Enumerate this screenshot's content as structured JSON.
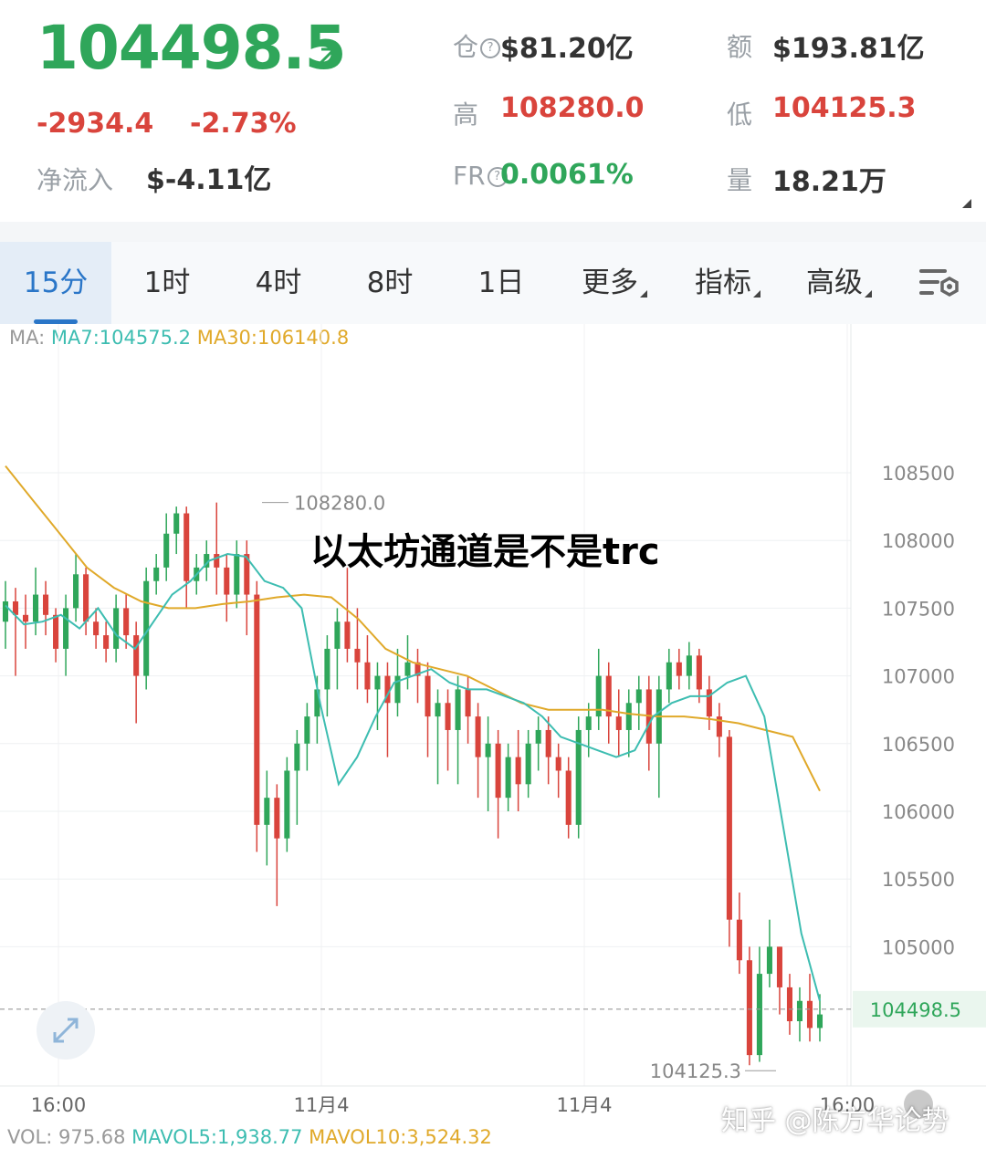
{
  "header": {
    "price": "104498.5",
    "change": "-2934.4",
    "change_pct": "-2.73%",
    "net_inflow_label": "净流入",
    "net_inflow_value": "$-4.11亿",
    "oi_label": "仓",
    "oi_value": "$81.20亿",
    "amount_label": "额",
    "amount_value": "$193.81亿",
    "high_label": "高",
    "high_value": "108280.0",
    "low_label": "低",
    "low_value": "104125.3",
    "fr_label": "FR",
    "fr_value": "0.0061%",
    "volume_label": "量",
    "volume_value": "18.21万",
    "question_glyph": "?"
  },
  "tabs": [
    {
      "label": "15分",
      "active": true
    },
    {
      "label": "1时"
    },
    {
      "label": "4时"
    },
    {
      "label": "8时"
    },
    {
      "label": "1日"
    },
    {
      "label": "更多"
    },
    {
      "label": "指标"
    },
    {
      "label": "高级"
    }
  ],
  "ma_legend": {
    "prefix": "MA:",
    "ma7": "MA7:104575.2",
    "ma30": "MA30:106140.8"
  },
  "overlay_title": "以太坊通道是不是trc",
  "vol_legend": {
    "vol": "VOL: 975.68",
    "mavol5": "MAVOL5:1,938.77",
    "mavol10": "MAVOL10:3,524.32"
  },
  "watermark": "知乎 @陈方华论势",
  "colors": {
    "up": "#2fa65a",
    "down": "#d9443c",
    "ma7": "#3dbdb1",
    "ma30": "#e0a92a",
    "active_tab": "#2a76c8"
  },
  "chart_data": {
    "type": "candlestick",
    "y_ticks": [
      108500,
      108000,
      107500,
      107000,
      106500,
      106000,
      105500,
      105000
    ],
    "x_tick_labels": [
      "16:00",
      "11月4",
      "11月4",
      "16:00"
    ],
    "last_price_label": "104498.5",
    "high_marker": "108280.0",
    "low_marker": "104125.3",
    "ylim": [
      104000,
      109000
    ],
    "ma7_points": [
      107520,
      107380,
      107400,
      107450,
      107350,
      107500,
      107300,
      107200,
      107400,
      107600,
      107700,
      107850,
      107900,
      107880,
      107700,
      107650,
      107500,
      106800,
      106200,
      106400,
      106700,
      106950,
      107000,
      107050,
      106950,
      106900,
      106900,
      106850,
      106800,
      106700,
      106550,
      106500,
      106450,
      106400,
      106450,
      106700,
      106800,
      106850,
      106850,
      106950,
      107000,
      106700,
      105900,
      105100,
      104600
    ],
    "ma30_points": [
      108550,
      108300,
      108050,
      107800,
      107650,
      107550,
      107500,
      107500,
      107530,
      107550,
      107580,
      107600,
      107580,
      107420,
      107200,
      107100,
      107050,
      107000,
      106900,
      106800,
      106750,
      106750,
      106750,
      106720,
      106700,
      106700,
      106680,
      106650,
      106600,
      106550,
      106150
    ],
    "candles": [
      {
        "o": 107400,
        "c": 107550,
        "h": 107700,
        "l": 107200
      },
      {
        "o": 107550,
        "c": 107450,
        "h": 107650,
        "l": 107000
      },
      {
        "o": 107450,
        "c": 107400,
        "h": 107600,
        "l": 107200
      },
      {
        "o": 107400,
        "c": 107600,
        "h": 107800,
        "l": 107300
      },
      {
        "o": 107600,
        "c": 107450,
        "h": 107700,
        "l": 107300
      },
      {
        "o": 107450,
        "c": 107200,
        "h": 107500,
        "l": 107100
      },
      {
        "o": 107200,
        "c": 107500,
        "h": 107600,
        "l": 107000
      },
      {
        "o": 107500,
        "c": 107750,
        "h": 107900,
        "l": 107400
      },
      {
        "o": 107750,
        "c": 107400,
        "h": 107800,
        "l": 107300
      },
      {
        "o": 107400,
        "c": 107300,
        "h": 107500,
        "l": 107200
      },
      {
        "o": 107300,
        "c": 107200,
        "h": 107400,
        "l": 107100
      },
      {
        "o": 107200,
        "c": 107500,
        "h": 107600,
        "l": 107100
      },
      {
        "o": 107500,
        "c": 107300,
        "h": 107600,
        "l": 107200
      },
      {
        "o": 107300,
        "c": 107000,
        "h": 107400,
        "l": 106650
      },
      {
        "o": 107000,
        "c": 107700,
        "h": 107800,
        "l": 106900
      },
      {
        "o": 107700,
        "c": 107800,
        "h": 107900,
        "l": 107600
      },
      {
        "o": 107800,
        "c": 108050,
        "h": 108200,
        "l": 107700
      },
      {
        "o": 108050,
        "c": 108200,
        "h": 108250,
        "l": 107900
      },
      {
        "o": 108200,
        "c": 107700,
        "h": 108250,
        "l": 107500
      },
      {
        "o": 107700,
        "c": 107800,
        "h": 107900,
        "l": 107600
      },
      {
        "o": 107800,
        "c": 107900,
        "h": 108000,
        "l": 107700
      },
      {
        "o": 107900,
        "c": 107800,
        "h": 108280,
        "l": 107600
      },
      {
        "o": 107800,
        "c": 107600,
        "h": 107900,
        "l": 107400
      },
      {
        "o": 107600,
        "c": 107900,
        "h": 108000,
        "l": 107500
      },
      {
        "o": 107900,
        "c": 107600,
        "h": 108000,
        "l": 107300
      },
      {
        "o": 107600,
        "c": 105900,
        "h": 107700,
        "l": 105700
      },
      {
        "o": 105900,
        "c": 106100,
        "h": 106300,
        "l": 105600
      },
      {
        "o": 106100,
        "c": 105800,
        "h": 106200,
        "l": 105300
      },
      {
        "o": 105800,
        "c": 106300,
        "h": 106400,
        "l": 105700
      },
      {
        "o": 106300,
        "c": 106500,
        "h": 106600,
        "l": 105900
      },
      {
        "o": 106500,
        "c": 106700,
        "h": 106800,
        "l": 106300
      },
      {
        "o": 106700,
        "c": 106900,
        "h": 107000,
        "l": 106500
      },
      {
        "o": 106900,
        "c": 107200,
        "h": 107300,
        "l": 106700
      },
      {
        "o": 107200,
        "c": 107400,
        "h": 107500,
        "l": 106900
      },
      {
        "o": 107400,
        "c": 107200,
        "h": 107800,
        "l": 107100
      },
      {
        "o": 107200,
        "c": 107100,
        "h": 107500,
        "l": 106900
      },
      {
        "o": 107100,
        "c": 106900,
        "h": 107300,
        "l": 106800
      },
      {
        "o": 106900,
        "c": 107000,
        "h": 107100,
        "l": 106600
      },
      {
        "o": 107000,
        "c": 106800,
        "h": 107100,
        "l": 106400
      },
      {
        "o": 106800,
        "c": 107000,
        "h": 107200,
        "l": 106700
      },
      {
        "o": 107000,
        "c": 107100,
        "h": 107300,
        "l": 106900
      },
      {
        "o": 107100,
        "c": 107000,
        "h": 107200,
        "l": 106800
      },
      {
        "o": 107000,
        "c": 106700,
        "h": 107100,
        "l": 106400
      },
      {
        "o": 106700,
        "c": 106800,
        "h": 106900,
        "l": 106200
      },
      {
        "o": 106800,
        "c": 106600,
        "h": 106900,
        "l": 106300
      },
      {
        "o": 106600,
        "c": 106900,
        "h": 107000,
        "l": 106200
      },
      {
        "o": 106900,
        "c": 106700,
        "h": 107000,
        "l": 106500
      },
      {
        "o": 106700,
        "c": 106400,
        "h": 106800,
        "l": 106100
      },
      {
        "o": 106400,
        "c": 106500,
        "h": 106700,
        "l": 106000
      },
      {
        "o": 106500,
        "c": 106100,
        "h": 106600,
        "l": 105800
      },
      {
        "o": 106100,
        "c": 106400,
        "h": 106500,
        "l": 106000
      },
      {
        "o": 106400,
        "c": 106200,
        "h": 106600,
        "l": 106000
      },
      {
        "o": 106200,
        "c": 106500,
        "h": 106600,
        "l": 106100
      },
      {
        "o": 106500,
        "c": 106600,
        "h": 106700,
        "l": 106300
      },
      {
        "o": 106600,
        "c": 106400,
        "h": 106700,
        "l": 106200
      },
      {
        "o": 106400,
        "c": 106300,
        "h": 106500,
        "l": 106100
      },
      {
        "o": 106300,
        "c": 105900,
        "h": 106400,
        "l": 105800
      },
      {
        "o": 105900,
        "c": 106600,
        "h": 106700,
        "l": 105800
      },
      {
        "o": 106600,
        "c": 106700,
        "h": 106800,
        "l": 106400
      },
      {
        "o": 106700,
        "c": 107000,
        "h": 107200,
        "l": 106600
      },
      {
        "o": 107000,
        "c": 106700,
        "h": 107100,
        "l": 106500
      },
      {
        "o": 106700,
        "c": 106600,
        "h": 106900,
        "l": 106400
      },
      {
        "o": 106600,
        "c": 106800,
        "h": 106900,
        "l": 106400
      },
      {
        "o": 106800,
        "c": 106900,
        "h": 107000,
        "l": 106600
      },
      {
        "o": 106900,
        "c": 106500,
        "h": 107000,
        "l": 106300
      },
      {
        "o": 106500,
        "c": 106900,
        "h": 107000,
        "l": 106100
      },
      {
        "o": 106900,
        "c": 107100,
        "h": 107200,
        "l": 106800
      },
      {
        "o": 107100,
        "c": 107000,
        "h": 107200,
        "l": 106900
      },
      {
        "o": 107000,
        "c": 107150,
        "h": 107250,
        "l": 106900
      },
      {
        "o": 107150,
        "c": 106900,
        "h": 107200,
        "l": 106800
      },
      {
        "o": 106900,
        "c": 106700,
        "h": 107000,
        "l": 106600
      },
      {
        "o": 106700,
        "c": 106550,
        "h": 106800,
        "l": 106400
      },
      {
        "o": 106550,
        "c": 105200,
        "h": 106600,
        "l": 105000
      },
      {
        "o": 105200,
        "c": 104900,
        "h": 105400,
        "l": 104800
      },
      {
        "o": 104900,
        "c": 104200,
        "h": 105000,
        "l": 104125
      },
      {
        "o": 104200,
        "c": 104800,
        "h": 105000,
        "l": 104150
      },
      {
        "o": 104800,
        "c": 105000,
        "h": 105200,
        "l": 104700
      },
      {
        "o": 105000,
        "c": 104700,
        "h": 105000,
        "l": 104500
      },
      {
        "o": 104700,
        "c": 104450,
        "h": 104800,
        "l": 104350
      },
      {
        "o": 104450,
        "c": 104600,
        "h": 104700,
        "l": 104300
      },
      {
        "o": 104600,
        "c": 104400,
        "h": 104800,
        "l": 104300
      },
      {
        "o": 104400,
        "c": 104500,
        "h": 104650,
        "l": 104300
      }
    ]
  }
}
